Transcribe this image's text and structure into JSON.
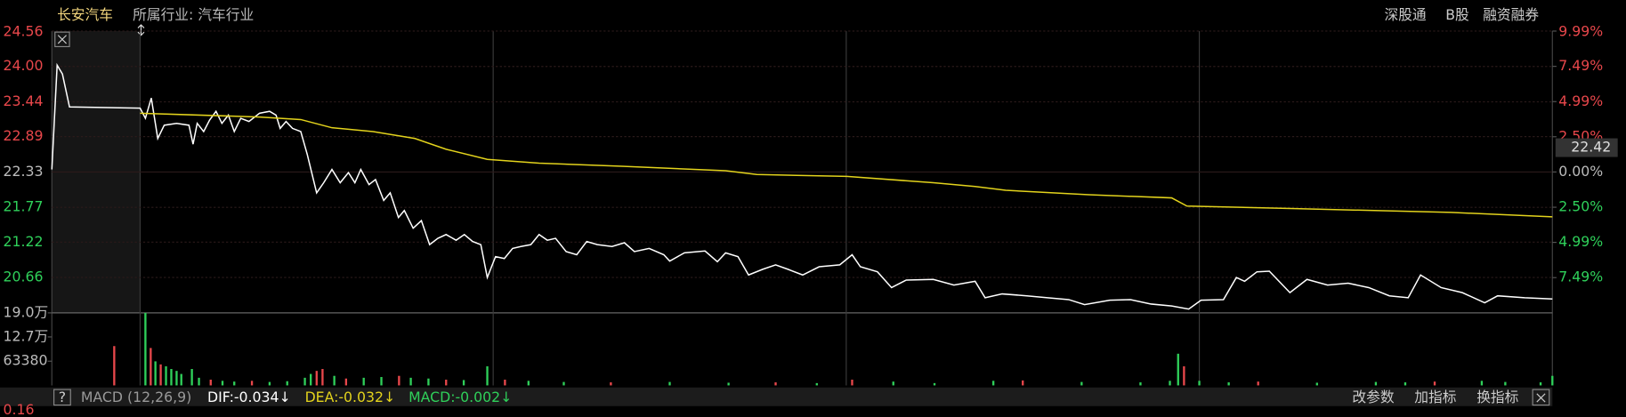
{
  "header": {
    "stock_name": "长安汽车",
    "industry": "所属行业: 汽车行业",
    "links": [
      "深股通",
      "B股",
      "融资融券"
    ]
  },
  "chart_data": [
    {
      "type": "line",
      "xlim": [
        -15,
        240
      ],
      "xgrid": [
        0,
        60,
        120,
        180
      ],
      "ylim": [
        20.1,
        24.56
      ],
      "yticks": [
        24.56,
        {
          "value": 24,
          "label": "24.00"
        },
        23.44,
        22.89,
        22.33,
        21.77,
        21.22,
        20.66
      ],
      "y2lim": [
        -9.99,
        9.99
      ],
      "y2ticks": [
        {
          "value": 9.99,
          "label": "9.99%"
        },
        {
          "value": 7.49,
          "label": "7.49%"
        },
        {
          "value": 4.99,
          "label": "4.99%"
        },
        {
          "value": 2.5,
          "label": "2.50%"
        },
        {
          "value": 0,
          "label": "0.00%"
        },
        {
          "value": -2.5,
          "label": "2.50%"
        },
        {
          "value": -4.99,
          "label": "4.99%"
        },
        {
          "value": -7.49,
          "label": "7.49%"
        }
      ],
      "marker_price": 22.42,
      "grid": true,
      "series": [
        {
          "color": "#ffffff",
          "x": [
            -15,
            -14.1,
            -13.2,
            -12,
            0,
            0.9,
            1.9,
            3.0,
            4.1,
            6.2,
            8.3,
            9.0,
            9.7,
            10.8,
            11.8,
            12.9,
            13.9,
            15.0,
            16.0,
            17.1,
            18.5,
            20.3,
            22.0,
            23.1,
            23.8,
            24.8,
            25.9,
            27.3,
            28.4,
            30.0,
            31.2,
            32.6,
            34.0,
            35.4,
            36.5,
            37.5,
            38.9,
            40.0,
            41.4,
            42.5,
            43.9,
            44.9,
            46.4,
            47.8,
            49.2,
            50.6,
            52.0,
            53.7,
            55.1,
            56.5,
            57.9,
            59.0,
            60.4,
            61.9,
            63.3,
            64.7,
            66.4,
            67.8,
            69.2,
            70.6,
            72.4,
            74.2,
            75.9,
            77.7,
            80.2,
            82.3,
            84.0,
            86.5,
            89.0,
            90.0,
            92.5,
            96.0,
            98.1,
            99.5,
            101.6,
            103.4,
            105.8,
            108.0,
            110.1,
            112.6,
            115.4,
            118.9,
            121.0,
            122.4,
            125.3,
            127.7,
            130.2,
            134.8,
            138.3,
            141.9,
            143.6,
            146.5,
            150.7,
            154.2,
            157.8,
            160.5,
            164.8,
            168.3,
            171.8,
            175.3,
            178.2,
            180.3,
            184.1,
            186.3,
            187.7,
            189.8,
            191.9,
            195.4,
            198.3,
            201.8,
            205.3,
            208.8,
            212.3,
            215.5,
            217.6,
            221.1,
            224.7,
            228.5,
            230.7,
            235.3,
            240
          ],
          "values": [
            22.37,
            24.02,
            23.88,
            23.36,
            23.34,
            23.18,
            23.5,
            22.86,
            23.07,
            23.1,
            23.07,
            22.77,
            23.1,
            22.97,
            23.15,
            23.29,
            23.1,
            23.23,
            22.97,
            23.18,
            23.13,
            23.26,
            23.29,
            23.23,
            23.02,
            23.13,
            23.02,
            22.97,
            22.61,
            22.0,
            22.16,
            22.37,
            22.16,
            22.32,
            22.16,
            22.37,
            22.13,
            22.21,
            21.88,
            22.0,
            21.61,
            21.72,
            21.44,
            21.56,
            21.18,
            21.28,
            21.34,
            21.25,
            21.34,
            21.23,
            21.18,
            20.66,
            20.99,
            20.96,
            21.12,
            21.15,
            21.18,
            21.34,
            21.25,
            21.28,
            21.07,
            21.02,
            21.23,
            21.18,
            21.15,
            21.21,
            21.07,
            21.12,
            21.02,
            20.92,
            21.05,
            21.08,
            20.91,
            21.05,
            20.99,
            20.7,
            20.79,
            20.86,
            20.79,
            20.7,
            20.83,
            20.86,
            21.02,
            20.83,
            20.75,
            20.5,
            20.62,
            20.63,
            20.54,
            20.6,
            20.34,
            20.4,
            20.37,
            20.34,
            20.31,
            20.23,
            20.3,
            20.31,
            20.24,
            20.21,
            20.16,
            20.3,
            20.31,
            20.66,
            20.6,
            20.75,
            20.76,
            20.42,
            20.63,
            20.54,
            20.57,
            20.5,
            20.37,
            20.34,
            20.7,
            20.5,
            20.42,
            20.26,
            20.37,
            20.34,
            20.32
          ]
        },
        {
          "color": "#e3d31c",
          "x": [
            0,
            20.3,
            27.3,
            32.6,
            39.6,
            46.7,
            52.0,
            59.0,
            67.8,
            81.9,
            99.5,
            104.8,
            120.1,
            134.8,
            141.9,
            147.1,
            161.2,
            175.3,
            177.9,
            196.4,
            222.8,
            240
          ],
          "values": [
            23.26,
            23.2,
            23.16,
            23.03,
            22.97,
            22.86,
            22.69,
            22.53,
            22.47,
            22.42,
            22.35,
            22.29,
            22.26,
            22.16,
            22.1,
            22.04,
            21.97,
            21.92,
            21.79,
            21.75,
            21.69,
            21.62
          ]
        }
      ]
    },
    {
      "type": "bar",
      "ylim": [
        0,
        190000
      ],
      "yticks": [
        {
          "value": 190000,
          "label": "19.0万"
        },
        {
          "value": 127000,
          "label": "12.7万"
        },
        63380
      ],
      "x": [
        -4.4,
        0.9,
        1.8,
        2.6,
        3.5,
        4.4,
        5.3,
        6.2,
        7.0,
        8.8,
        10,
        12,
        14,
        16,
        19,
        22,
        25,
        28,
        29,
        30,
        31,
        33,
        35,
        38,
        41,
        44,
        46,
        49,
        52,
        55,
        59,
        62,
        66,
        72,
        80,
        90,
        100,
        108,
        115,
        121,
        128,
        135,
        145,
        150,
        160,
        170,
        175,
        176.4,
        177.4,
        180,
        185,
        190,
        200,
        210,
        215,
        220,
        228,
        232,
        238,
        240
      ],
      "values": [
        103000,
        190000,
        98000,
        63000,
        55000,
        50000,
        43000,
        38000,
        30000,
        43000,
        20000,
        15000,
        12000,
        10000,
        12000,
        9000,
        11000,
        20000,
        30000,
        38000,
        43000,
        25000,
        18000,
        20000,
        22000,
        25000,
        20000,
        18000,
        15000,
        14000,
        50000,
        15000,
        12000,
        9000,
        8000,
        9000,
        7000,
        8000,
        6000,
        15000,
        10000,
        6000,
        12000,
        13000,
        9000,
        8000,
        12000,
        83000,
        50000,
        12000,
        8000,
        10000,
        7000,
        9000,
        8000,
        10000,
        12000,
        9000,
        8000,
        25000
      ],
      "colors": [
        "#e8474b",
        "#2fd05a",
        "#e8474b",
        "#2fd05a",
        "#e8474b",
        "#2fd05a",
        "#2fd05a",
        "#2fd05a",
        "#2fd05a",
        "#2fd05a",
        "#2fd05a",
        "#e8474b",
        "#2fd05a",
        "#2fd05a",
        "#e8474b",
        "#2fd05a",
        "#2fd05a",
        "#2fd05a",
        "#2fd05a",
        "#e8474b",
        "#e8474b",
        "#2fd05a",
        "#e8474b",
        "#2fd05a",
        "#2fd05a",
        "#e8474b",
        "#2fd05a",
        "#2fd05a",
        "#e8474b",
        "#2fd05a",
        "#2fd05a",
        "#e8474b",
        "#2fd05a",
        "#2fd05a",
        "#e8474b",
        "#2fd05a",
        "#2fd05a",
        "#e8474b",
        "#2fd05a",
        "#e8474b",
        "#2fd05a",
        "#2fd05a",
        "#2fd05a",
        "#e8474b",
        "#2fd05a",
        "#2fd05a",
        "#2fd05a",
        "#2fd05a",
        "#e8474b",
        "#2fd05a",
        "#2fd05a",
        "#e8474b",
        "#2fd05a",
        "#2fd05a",
        "#2fd05a",
        "#e8474b",
        "#2fd05a",
        "#2fd05a",
        "#2fd05a",
        "#2fd05a"
      ]
    },
    {
      "type": "macd",
      "indicator": "MACD (12,26,9)",
      "dif": "DIF:-0.034↓",
      "dea": "DEA:-0.032↓",
      "macd": "MACD:-0.002↓",
      "buttons": [
        "改参数",
        "加指标",
        "换指标"
      ],
      "yticks": [
        0.16
      ]
    }
  ]
}
